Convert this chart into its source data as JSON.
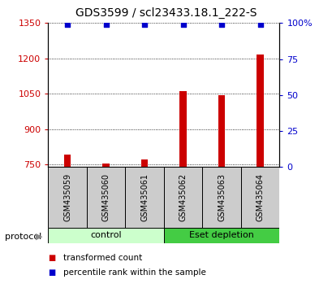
{
  "title": "GDS3599 / scl23433.18.1_222-S",
  "categories": [
    "GSM435059",
    "GSM435060",
    "GSM435061",
    "GSM435062",
    "GSM435063",
    "GSM435064"
  ],
  "red_values": [
    793,
    756,
    773,
    1063,
    1045,
    1218
  ],
  "blue_values": [
    99,
    99,
    99,
    99,
    99,
    99
  ],
  "ylim_left": [
    740,
    1350
  ],
  "ylim_right": [
    0,
    100
  ],
  "yticks_left": [
    750,
    900,
    1050,
    1200,
    1350
  ],
  "yticks_right": [
    0,
    25,
    50,
    75,
    100
  ],
  "ytick_right_labels": [
    "0",
    "25",
    "50",
    "75",
    "100%"
  ],
  "red_color": "#cc0000",
  "blue_color": "#0000cc",
  "bar_width": 0.18,
  "control_label": "control",
  "eset_label": "Eset depletion",
  "protocol_label": "protocol",
  "legend_red": "transformed count",
  "legend_blue": "percentile rank within the sample",
  "background_color": "#ffffff",
  "panel_bg": "#cccccc",
  "control_bg": "#ccffcc",
  "eset_bg": "#44cc44",
  "title_fontsize": 10,
  "tick_fontsize": 8,
  "label_fontsize": 8
}
